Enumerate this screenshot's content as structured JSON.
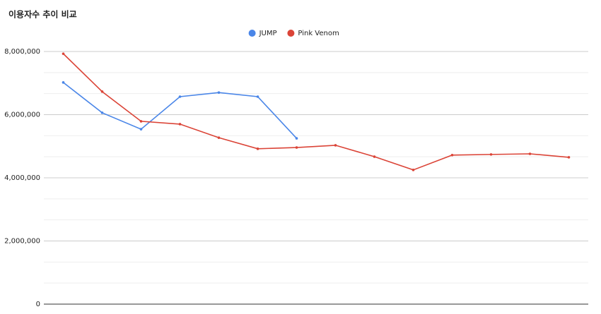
{
  "chart_data": {
    "type": "line",
    "title": "이용자수 추이 비교",
    "categories": [
      null,
      null,
      null,
      null,
      null,
      null,
      null,
      null,
      null,
      null,
      null,
      null,
      null,
      null
    ],
    "series": [
      {
        "name": "JUMP",
        "color": "#4a86e8",
        "values": [
          7020000,
          6060000,
          5540000,
          6570000,
          6700000,
          6570000,
          5250000,
          null,
          null,
          null,
          null,
          null,
          null,
          null
        ]
      },
      {
        "name": "Pink Venom",
        "color": "#db4437",
        "values": [
          7930000,
          6730000,
          5790000,
          5700000,
          5270000,
          4920000,
          4960000,
          5030000,
          4670000,
          4250000,
          4720000,
          4740000,
          4760000,
          4650000
        ]
      }
    ],
    "ylim": [
      0,
      8000000
    ],
    "yticks": [
      0,
      {
        "value": 2000000,
        "label": "2,000,000"
      },
      {
        "value": 4000000,
        "label": "4,000,000"
      },
      {
        "value": 6000000,
        "label": "6,000,000"
      },
      {
        "value": 8000000,
        "label": "8,000,000"
      }
    ],
    "grid": true,
    "legend": "top"
  }
}
